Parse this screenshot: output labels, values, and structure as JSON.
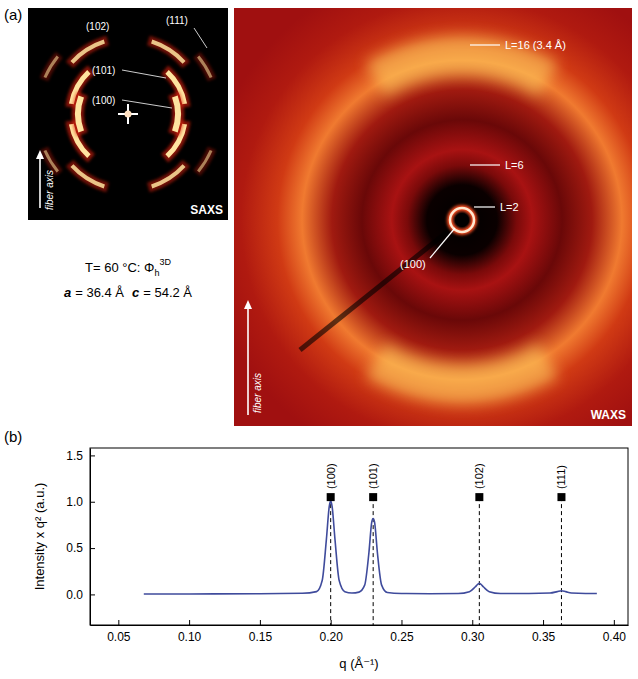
{
  "figure": {
    "letters": [
      "(a)",
      "(b)"
    ],
    "saxs": {
      "title": "SAXS",
      "axis_label": "fiber axis",
      "reflections": [
        "(111)",
        "(102)",
        "(101)",
        "(100)"
      ]
    },
    "waxs": {
      "title": "WAXS",
      "axis_label": "fiber axis",
      "reflections": [
        "L=16 (3.4 Å)",
        "L=6",
        "L=2",
        "(100)"
      ]
    },
    "phase": {
      "text": "T= 60 °C: Φ",
      "subscript": "h",
      "superscript": "3D"
    },
    "lattice": [
      {
        "symbol": "a",
        "text": "= 36.4 Å"
      },
      {
        "symbol": "c",
        "text": "= 54.2 Å"
      }
    ]
  },
  "chart_data": {
    "type": "line",
    "x_label": "q (Å⁻¹)",
    "y_label": "Intensity x q² (a.u.)",
    "x": [
      0.068,
      0.1,
      0.15,
      0.18,
      0.19,
      0.194,
      0.197,
      0.199,
      0.2,
      0.201,
      0.203,
      0.206,
      0.21,
      0.215,
      0.22,
      0.224,
      0.227,
      0.229,
      0.23,
      0.231,
      0.233,
      0.236,
      0.24,
      0.25,
      0.27,
      0.29,
      0.298,
      0.302,
      0.304,
      0.305,
      0.306,
      0.308,
      0.312,
      0.32,
      0.34,
      0.355,
      0.36,
      0.363,
      0.366,
      0.37,
      0.38,
      0.388
    ],
    "values": [
      0.005,
      0.005,
      0.008,
      0.012,
      0.03,
      0.15,
      0.6,
      0.95,
      1.01,
      0.95,
      0.6,
      0.15,
      0.03,
      0.015,
      0.025,
      0.1,
      0.45,
      0.78,
      0.82,
      0.78,
      0.45,
      0.1,
      0.02,
      0.01,
      0.008,
      0.01,
      0.03,
      0.08,
      0.11,
      0.12,
      0.11,
      0.08,
      0.03,
      0.01,
      0.01,
      0.015,
      0.03,
      0.04,
      0.03,
      0.015,
      0.01,
      0.01
    ],
    "color": "#3f4b9c",
    "xlim": [
      0.03,
      0.41
    ],
    "ylim": [
      -0.33,
      1.58
    ],
    "xticks": [
      0.05,
      {
        "value": 0.1,
        "label": "0.10"
      },
      0.15,
      {
        "value": 0.2,
        "label": "0.20"
      },
      0.25,
      {
        "value": 0.3,
        "label": "0.30"
      },
      0.35,
      {
        "value": 0.4,
        "label": "0.40"
      }
    ],
    "yticks": [
      {
        "value": 0,
        "label": "0.0"
      },
      {
        "value": 0.5,
        "label": "0.5"
      },
      {
        "value": 1,
        "label": "1.0"
      },
      {
        "value": 1.5,
        "label": "1.5"
      }
    ],
    "annotations": [
      {
        "x": 0.2,
        "y": 1.05,
        "label": "(100)"
      },
      {
        "x": 0.23,
        "y": 1.05,
        "label": "(101)"
      },
      {
        "x": 0.305,
        "y": 1.05,
        "label": "(102)"
      },
      {
        "x": 0.363,
        "y": 1.05,
        "label": "(111)"
      }
    ]
  }
}
